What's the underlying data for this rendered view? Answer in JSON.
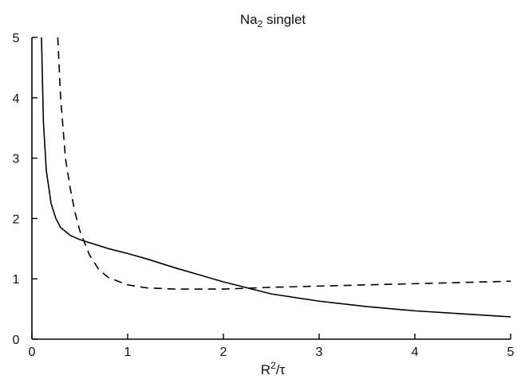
{
  "chart_data": {
    "type": "line",
    "title": "Na2 singlet",
    "title_parts": {
      "base": "Na",
      "sub": "2",
      "rest": " singlet"
    },
    "xlabel": "R²/τ",
    "xlabel_parts": {
      "base": "R",
      "sup": "2",
      "rest": "/τ"
    },
    "ylabel": "",
    "xlim": [
      0,
      5
    ],
    "ylim": [
      0,
      5
    ],
    "xticks": [
      "0",
      "1",
      "2",
      "3",
      "4",
      "5"
    ],
    "yticks": [
      "0",
      "1",
      "2",
      "3",
      "4",
      "5"
    ],
    "grid": false,
    "series": [
      {
        "style": "solid",
        "x": [
          0.1,
          0.12,
          0.15,
          0.2,
          0.25,
          0.3,
          0.4,
          0.5,
          0.6,
          0.8,
          1.0,
          1.2,
          1.5,
          2.0,
          2.5,
          3.0,
          3.5,
          4.0,
          4.5,
          5.0
        ],
        "y": [
          5.0,
          3.6,
          2.8,
          2.25,
          2.0,
          1.85,
          1.72,
          1.65,
          1.6,
          1.5,
          1.42,
          1.33,
          1.18,
          0.95,
          0.75,
          0.63,
          0.54,
          0.47,
          0.42,
          0.37
        ]
      },
      {
        "style": "dashed",
        "x": [
          0.27,
          0.3,
          0.35,
          0.4,
          0.45,
          0.5,
          0.6,
          0.7,
          0.8,
          1.0,
          1.2,
          1.5,
          2.0,
          2.5,
          3.0,
          3.5,
          4.0,
          4.5,
          5.0
        ],
        "y": [
          5.0,
          4.0,
          3.0,
          2.5,
          2.1,
          1.8,
          1.4,
          1.15,
          1.02,
          0.9,
          0.85,
          0.83,
          0.83,
          0.86,
          0.88,
          0.9,
          0.92,
          0.94,
          0.96
        ]
      }
    ]
  }
}
